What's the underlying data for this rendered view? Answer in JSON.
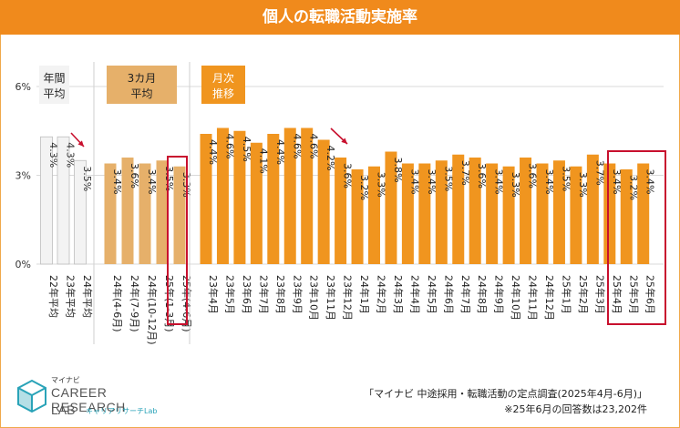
{
  "title": "個人の転職活動実施率",
  "chart_data": {
    "type": "bar",
    "ylim": [
      0,
      6
    ],
    "yticks": [
      "0%",
      "3%",
      "6%"
    ],
    "grid": true,
    "groups": [
      {
        "label": "年間平均",
        "color": "#f3f3f3",
        "categories": [
          "22年平均",
          "23年平均",
          "24年平均"
        ],
        "values": [
          4.3,
          4.3,
          3.5
        ],
        "labels": [
          "4.3%",
          "4.3%",
          "3.5%"
        ]
      },
      {
        "label": "3カ月平均",
        "color": "#e6b06a",
        "categories": [
          "24年(4-6月)",
          "24年(7-9月)",
          "24年(10-12月)",
          "25年(1-3月)",
          "25年(4-6月)"
        ],
        "values": [
          3.4,
          3.6,
          3.4,
          3.5,
          3.3
        ],
        "labels": [
          "3.4%",
          "3.6%",
          "3.4%",
          "3.5%",
          "3.3%"
        ]
      },
      {
        "label": "月次推移",
        "color": "#f0951f",
        "categories": [
          "23年4月",
          "23年5月",
          "23年6月",
          "23年7月",
          "23年8月",
          "23年9月",
          "23年10月",
          "23年11月",
          "23年12月",
          "24年1月",
          "24年2月",
          "24年3月",
          "24年4月",
          "24年5月",
          "24年6月",
          "24年7月",
          "24年8月",
          "24年9月",
          "24年10月",
          "24年11月",
          "24年12月",
          "25年1月",
          "25年2月",
          "25年3月",
          "25年4月",
          "25年5月",
          "25年6月"
        ],
        "values": [
          4.4,
          4.6,
          4.5,
          4.1,
          4.4,
          4.6,
          4.6,
          4.2,
          3.6,
          3.2,
          3.3,
          3.8,
          3.4,
          3.4,
          3.5,
          3.7,
          3.6,
          3.4,
          3.3,
          3.6,
          3.4,
          3.5,
          3.3,
          3.7,
          3.4,
          3.2,
          3.4
        ],
        "labels": [
          "4.4%",
          "4.6%",
          "4.5%",
          "4.1%",
          "4.4%",
          "4.6%",
          "4.6%",
          "4.2%",
          "3.6%",
          "3.2%",
          "3.3%",
          "3.8%",
          "3.4%",
          "3.4%",
          "3.5%",
          "3.7%",
          "3.6%",
          "3.4%",
          "3.3%",
          "3.6%",
          "3.4%",
          "3.5%",
          "3.3%",
          "3.7%",
          "3.4%",
          "3.2%",
          "3.4%"
        ]
      }
    ],
    "highlights": [
      "25年(4-6月)",
      "25年4月-25年6月"
    ],
    "arrows": [
      "24年平均",
      "24年1月"
    ]
  },
  "logo": {
    "small": "マイナビ",
    "main": "CAREER RESEARCH",
    "lab": "LAB",
    "kana": "キャリアリサーチLab"
  },
  "source": {
    "line1": "「マイナビ 中途採用・転職活動の定点調査(2025年4月-6月)」",
    "line2": "※25年6月の回答数は23,202件"
  }
}
